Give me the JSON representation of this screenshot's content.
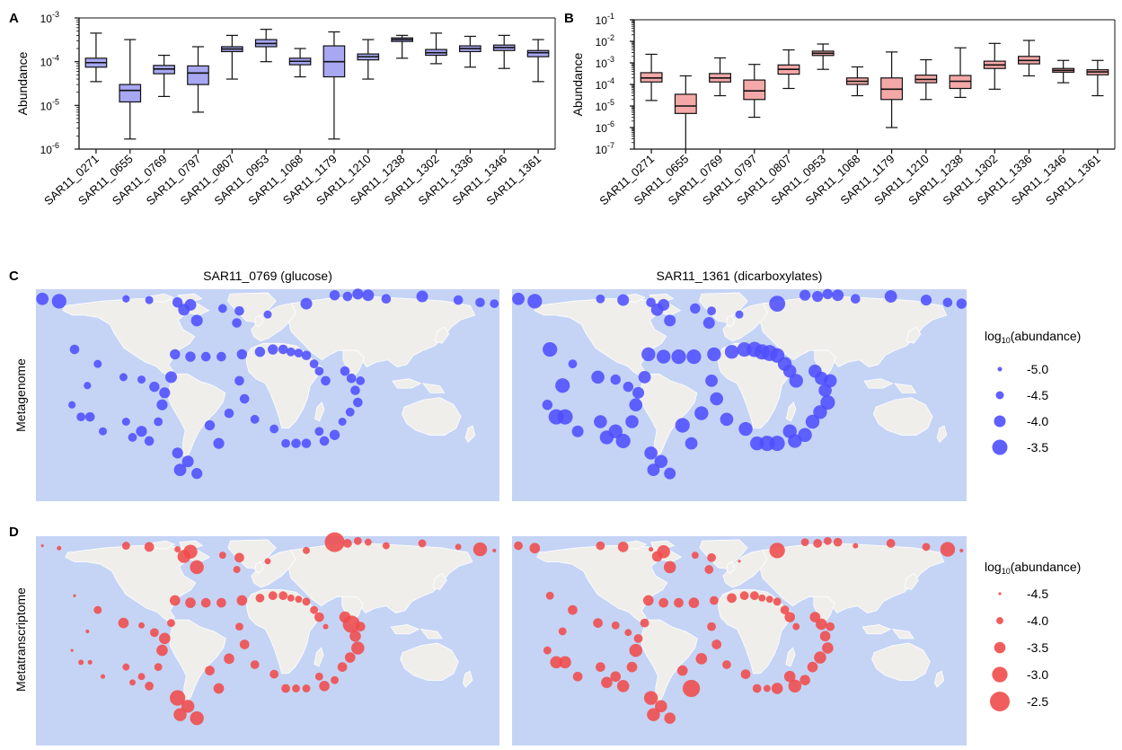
{
  "chart_data": [
    {
      "panel": "A",
      "type": "box",
      "ylabel": "Abundance",
      "scale": "log",
      "ylim": [
        1e-06,
        0.001
      ],
      "ytick_labels": [
        {
          "base": "10",
          "exp": "-6"
        },
        {
          "base": "10",
          "exp": "-5"
        },
        {
          "base": "10",
          "exp": "-4"
        },
        {
          "base": "10",
          "exp": "-3"
        }
      ],
      "color": "#a7a7f2",
      "categories": [
        "SAR11_0271",
        "SAR11_0655",
        "SAR11_0769",
        "SAR11_0797",
        "SAR11_0807",
        "SAR11_0953",
        "SAR11_1068",
        "SAR11_1179",
        "SAR11_1210",
        "SAR11_1238",
        "SAR11_1302",
        "SAR11_1336",
        "SAR11_1346",
        "SAR11_1361"
      ],
      "boxes": [
        {
          "min": 3.5e-05,
          "q1": 7.5e-05,
          "median": 9.5e-05,
          "q3": 0.00012,
          "max": 0.00045
        },
        {
          "min": 1.7e-06,
          "q1": 1.2e-05,
          "median": 2.2e-05,
          "q3": 3e-05,
          "max": 0.00032
        },
        {
          "min": 1.6e-05,
          "q1": 5.3e-05,
          "median": 6.8e-05,
          "q3": 8.2e-05,
          "max": 0.00014
        },
        {
          "min": 7e-06,
          "q1": 3e-05,
          "median": 5.5e-05,
          "q3": 8e-05,
          "max": 0.00022
        },
        {
          "min": 4e-05,
          "q1": 0.00017,
          "median": 0.000195,
          "q3": 0.00022,
          "max": 0.0004
        },
        {
          "min": 0.0001,
          "q1": 0.00022,
          "median": 0.00026,
          "q3": 0.00032,
          "max": 0.00055
        },
        {
          "min": 4.5e-05,
          "q1": 8.5e-05,
          "median": 0.000102,
          "q3": 0.00012,
          "max": 0.0002
        },
        {
          "min": 1.7e-06,
          "q1": 4.5e-05,
          "median": 0.0001,
          "q3": 0.00023,
          "max": 0.00048
        },
        {
          "min": 4e-05,
          "q1": 0.00011,
          "median": 0.00013,
          "q3": 0.00015,
          "max": 0.00032
        },
        {
          "min": 0.00012,
          "q1": 0.00029,
          "median": 0.00032,
          "q3": 0.00035,
          "max": 0.0004
        },
        {
          "min": 9e-05,
          "q1": 0.00014,
          "median": 0.00016,
          "q3": 0.00019,
          "max": 0.00045
        },
        {
          "min": 7.5e-05,
          "q1": 0.00017,
          "median": 0.0002,
          "q3": 0.00023,
          "max": 0.00038
        },
        {
          "min": 7e-05,
          "q1": 0.00018,
          "median": 0.00021,
          "q3": 0.00024,
          "max": 0.0004
        },
        {
          "min": 3.5e-05,
          "q1": 0.00013,
          "median": 0.00016,
          "q3": 0.00018,
          "max": 0.00032
        }
      ]
    },
    {
      "panel": "B",
      "type": "box",
      "ylabel": "Abundance",
      "scale": "log",
      "ylim": [
        1e-07,
        0.1
      ],
      "ytick_labels": [
        {
          "base": "10",
          "exp": "-7"
        },
        {
          "base": "10",
          "exp": "-6"
        },
        {
          "base": "10",
          "exp": "-5"
        },
        {
          "base": "10",
          "exp": "-4"
        },
        {
          "base": "10",
          "exp": "-3"
        },
        {
          "base": "10",
          "exp": "-2"
        },
        {
          "base": "10",
          "exp": "-1"
        }
      ],
      "color": "#f4a8a8",
      "categories": [
        "SAR11_0271",
        "SAR11_0655",
        "SAR11_0769",
        "SAR11_0797",
        "SAR11_0807",
        "SAR11_0953",
        "SAR11_1068",
        "SAR11_1179",
        "SAR11_1210",
        "SAR11_1238",
        "SAR11_1302",
        "SAR11_1336",
        "SAR11_1346",
        "SAR11_1361"
      ],
      "boxes": [
        {
          "min": 1.8e-05,
          "q1": 0.00013,
          "median": 0.0002,
          "q3": 0.00035,
          "max": 0.0025
        },
        {
          "min": 1e-07,
          "q1": 4.5e-06,
          "median": 1e-05,
          "q3": 3.5e-05,
          "max": 0.00025
        },
        {
          "min": 3e-05,
          "q1": 0.00013,
          "median": 0.0002,
          "q3": 0.00032,
          "max": 0.0017
        },
        {
          "min": 3e-06,
          "q1": 2e-05,
          "median": 5e-05,
          "q3": 0.00016,
          "max": 0.00085
        },
        {
          "min": 6.5e-05,
          "q1": 0.0003,
          "median": 0.0005,
          "q3": 0.0008,
          "max": 0.004
        },
        {
          "min": 0.0005,
          "q1": 0.0022,
          "median": 0.0028,
          "q3": 0.0035,
          "max": 0.0075
        },
        {
          "min": 3e-05,
          "q1": 0.0001,
          "median": 0.00014,
          "q3": 0.0002,
          "max": 0.00065
        },
        {
          "min": 1e-06,
          "q1": 2e-05,
          "median": 6e-05,
          "q3": 0.0002,
          "max": 0.0032
        },
        {
          "min": 2e-05,
          "q1": 0.00012,
          "median": 0.00017,
          "q3": 0.00027,
          "max": 0.0014
        },
        {
          "min": 2.5e-05,
          "q1": 6.5e-05,
          "median": 0.00014,
          "q3": 0.00026,
          "max": 0.005
        },
        {
          "min": 6e-05,
          "q1": 0.00055,
          "median": 0.0008,
          "q3": 0.0012,
          "max": 0.008
        },
        {
          "min": 0.00025,
          "q1": 0.0009,
          "median": 0.0013,
          "q3": 0.002,
          "max": 0.011
        },
        {
          "min": 0.00012,
          "q1": 0.00037,
          "median": 0.00045,
          "q3": 0.00055,
          "max": 0.0013
        },
        {
          "min": 3e-05,
          "q1": 0.00028,
          "median": 0.00038,
          "q3": 0.00048,
          "max": 0.0013
        }
      ]
    }
  ],
  "maps": {
    "land_color": "#efeeea",
    "ocean_color": "#c5d4f5",
    "metagenome": {
      "panel": "C",
      "row_label": "Metagenome",
      "color": "#4f4fff",
      "titles": [
        "SAR11_0769 (glucose)",
        "SAR11_1361 (dicarboxylates)"
      ],
      "legend_title": "log10(abundance)",
      "legend_title_main": "log",
      "legend_title_sub": "10",
      "legend_title_rest": "(abundance)",
      "legend": [
        {
          "label": "-5.0",
          "value": -5.0
        },
        {
          "label": "-4.5",
          "value": -4.5
        },
        {
          "label": "-4.0",
          "value": -4.0
        },
        {
          "label": "-3.5",
          "value": -3.5
        }
      ]
    },
    "metatranscriptome": {
      "panel": "D",
      "row_label": "Metatranscriptome",
      "color": "#f04b4b",
      "legend_title": "log10(abundance)",
      "legend_title_main": "log",
      "legend_title_sub": "10",
      "legend_title_rest": "(abundance)",
      "legend": [
        {
          "label": "-4.5",
          "value": -4.5
        },
        {
          "label": "-4.0",
          "value": -4.0
        },
        {
          "label": "-3.5",
          "value": -3.5
        },
        {
          "label": "-3.0",
          "value": -3.0
        },
        {
          "label": "-2.5",
          "value": -2.5
        }
      ]
    },
    "stations": [
      {
        "lon": -175,
        "lat": 80,
        "C1": -3.9,
        "C2": -3.9,
        "D1": -4.5,
        "D2": -3.8
      },
      {
        "lon": -162,
        "lat": 78,
        "C1": -3.6,
        "C2": -3.6,
        "D1": -4.3,
        "D2": -3.6
      },
      {
        "lon": -110,
        "lat": 80,
        "C1": -4.6,
        "C2": -4.4,
        "D1": -3.9,
        "D2": -3.8
      },
      {
        "lon": -92,
        "lat": 79,
        "C1": -4.5,
        "C2": -4.0,
        "D1": -3.7,
        "D2": -3.6
      },
      {
        "lon": -70,
        "lat": 77,
        "C1": -4.2,
        "C2": -4.3,
        "D1": -4.1,
        "D2": -4.3
      },
      {
        "lon": -60,
        "lat": 75,
        "C1": -4.0,
        "C2": -4.0,
        "D1": -3.2,
        "D2": -3.3
      },
      {
        "lon": -55,
        "lat": 62,
        "C1": -4.0,
        "C2": -4.0,
        "D1": -3.2,
        "D2": -3.4
      },
      {
        "lon": -65,
        "lat": 71,
        "C1": -4.0,
        "C2": -3.9,
        "D1": -3.3,
        "D2": -3.6
      },
      {
        "lon": -35,
        "lat": 72,
        "C1": -4.4,
        "C2": -4.2,
        "D1": -4.0,
        "D2": -4.0
      },
      {
        "lon": -22,
        "lat": 70,
        "C1": -4.3,
        "C2": -4.4,
        "D1": -3.7,
        "D2": -3.8
      },
      {
        "lon": -24,
        "lat": 60,
        "C1": -4.3,
        "C2": -4.0,
        "D1": -4.0,
        "D2": -3.8
      },
      {
        "lon": 0,
        "lat": 67,
        "C1": -4.5,
        "C2": -4.5,
        "D1": -4.1,
        "D2": -4.6
      },
      {
        "lon": 30,
        "lat": 76,
        "C1": -4.0,
        "C2": -3.4,
        "D1": -4.0,
        "D2": -3.0
      },
      {
        "lon": 52,
        "lat": 83,
        "C1": -4.2,
        "C2": -4.1,
        "D1": -2.5,
        "D2": -3.9
      },
      {
        "lon": 62,
        "lat": 82,
        "C1": -4.3,
        "C2": -4.1,
        "D1": -3.8,
        "D2": -3.8
      },
      {
        "lon": 70,
        "lat": 84,
        "C1": -4.1,
        "C2": -4.2,
        "D1": -3.9,
        "D2": -3.9
      },
      {
        "lon": 78,
        "lat": 83,
        "C1": -4.0,
        "C2": -4.0,
        "D1": -4.0,
        "D2": -3.8
      },
      {
        "lon": 92,
        "lat": 80,
        "C1": -4.3,
        "C2": -4.3,
        "D1": -4.0,
        "D2": -4.2
      },
      {
        "lon": 120,
        "lat": 82,
        "C1": -4.0,
        "C2": -3.9,
        "D1": -3.9,
        "D2": -3.8
      },
      {
        "lon": 148,
        "lat": 79,
        "C1": -4.3,
        "C2": -4.1,
        "D1": -4.1,
        "D2": -3.9
      },
      {
        "lon": 165,
        "lat": 77,
        "C1": -4.3,
        "C2": -4.3,
        "D1": -3.2,
        "D2": -3.1
      },
      {
        "lon": 176,
        "lat": 76,
        "C1": -4.4,
        "C2": -4.2,
        "D1": -4.4,
        "D2": -4.4
      },
      {
        "lon": -150,
        "lat": 38,
        "C1": -4.3,
        "C2": -3.6,
        "D1": -4.5,
        "D2": -3.9
      },
      {
        "lon": -132,
        "lat": 26,
        "C1": -4.5,
        "C2": -4.4,
        "D1": -3.9,
        "D2": -3.7
      },
      {
        "lon": -140,
        "lat": 8,
        "C1": -4.6,
        "C2": -3.6,
        "D1": -4.4,
        "D2": -3.9
      },
      {
        "lon": -152,
        "lat": -8,
        "C1": -4.6,
        "C2": -4.2,
        "D1": -4.5,
        "D2": -3.9
      },
      {
        "lon": -145,
        "lat": -18,
        "C1": -4.4,
        "C2": -3.5,
        "D1": -4.2,
        "D2": -3.4
      },
      {
        "lon": -138,
        "lat": -18,
        "C1": -4.3,
        "C2": -3.5,
        "D1": -4.3,
        "D2": -3.4
      },
      {
        "lon": -128,
        "lat": -30,
        "C1": -4.5,
        "C2": -4.0,
        "D1": -4.3,
        "D2": -3.7
      },
      {
        "lon": -110,
        "lat": -22,
        "C1": -4.5,
        "C2": -3.8,
        "D1": -4.0,
        "D2": -3.7
      },
      {
        "lon": -105,
        "lat": -35,
        "C1": -4.4,
        "C2": -3.7,
        "D1": -4.1,
        "D2": -3.5
      },
      {
        "lon": -98,
        "lat": -30,
        "C1": -4.1,
        "C2": -3.7,
        "D1": -4.0,
        "D2": -3.6
      },
      {
        "lon": -92,
        "lat": -38,
        "C1": -4.3,
        "C2": -3.6,
        "D1": -3.8,
        "D2": -3.4
      },
      {
        "lon": -85,
        "lat": -22,
        "C1": -4.4,
        "C2": -3.8,
        "D1": -3.9,
        "D2": -3.6
      },
      {
        "lon": -112,
        "lat": 15,
        "C1": -4.5,
        "C2": -3.8,
        "D1": -3.6,
        "D2": -3.7
      },
      {
        "lon": -98,
        "lat": 13,
        "C1": -4.5,
        "C2": -4.2,
        "D1": -4.1,
        "D2": -3.9
      },
      {
        "lon": -88,
        "lat": 7,
        "C1": -4.2,
        "C2": -4.2,
        "D1": -3.8,
        "D2": -4.0
      },
      {
        "lon": -80,
        "lat": 2,
        "C1": -4.1,
        "C2": -4.0,
        "D1": -3.5,
        "D2": -3.8
      },
      {
        "lon": -82,
        "lat": -8,
        "C1": -4.1,
        "C2": -3.8,
        "D1": -3.5,
        "D2": -3.3
      },
      {
        "lon": -75,
        "lat": 15,
        "C1": -4.0,
        "C2": -3.9,
        "D1": -3.9,
        "D2": -3.8
      },
      {
        "lon": -70,
        "lat": -48,
        "C1": -4.1,
        "C2": -3.8,
        "D1": -3.0,
        "D2": -3.2
      },
      {
        "lon": -62,
        "lat": -55,
        "C1": -4.0,
        "C2": -3.8,
        "D1": -3.3,
        "D2": -3.4
      },
      {
        "lon": -68,
        "lat": -62,
        "C1": -3.9,
        "C2": -3.9,
        "D1": -3.3,
        "D2": -3.3
      },
      {
        "lon": -55,
        "lat": -65,
        "C1": -4.1,
        "C2": -4.0,
        "D1": -3.2,
        "D2": -3.5
      },
      {
        "lon": -45,
        "lat": -25,
        "C1": -4.2,
        "C2": -3.6,
        "D1": -3.7,
        "D2": -3.6
      },
      {
        "lon": -38,
        "lat": -40,
        "C1": -4.1,
        "C2": -3.9,
        "D1": -3.6,
        "D2": -2.8
      },
      {
        "lon": -30,
        "lat": -15,
        "C1": -4.3,
        "C2": -3.7,
        "D1": -3.6,
        "D2": -3.5
      },
      {
        "lon": -72,
        "lat": 34,
        "C1": -4.2,
        "C2": -3.7,
        "D1": -3.6,
        "D2": -3.6
      },
      {
        "lon": -60,
        "lat": 32,
        "C1": -4.2,
        "C2": -3.7,
        "D1": -3.6,
        "D2": -3.7
      },
      {
        "lon": -48,
        "lat": 32,
        "C1": -4.3,
        "C2": -3.6,
        "D1": -3.7,
        "D2": -3.7
      },
      {
        "lon": -36,
        "lat": 32,
        "C1": -4.3,
        "C2": -3.6,
        "D1": -3.7,
        "D2": -3.6
      },
      {
        "lon": -20,
        "lat": 34,
        "C1": -4.2,
        "C2": -3.7,
        "D1": -3.6,
        "D2": -3.8
      },
      {
        "lon": -6,
        "lat": 36,
        "C1": -4.2,
        "C2": -3.7,
        "D1": -3.8,
        "D2": -3.7
      },
      {
        "lon": 4,
        "lat": 38,
        "C1": -4.2,
        "C2": -3.6,
        "D1": -3.8,
        "D2": -3.8
      },
      {
        "lon": 12,
        "lat": 38,
        "C1": -4.3,
        "C2": -3.5,
        "D1": -3.8,
        "D2": -3.8
      },
      {
        "lon": 18,
        "lat": 36,
        "C1": -4.4,
        "C2": -3.5,
        "D1": -4.0,
        "D2": -4.0
      },
      {
        "lon": 24,
        "lat": 35,
        "C1": -4.4,
        "C2": -3.4,
        "D1": -4.0,
        "D2": -4.0
      },
      {
        "lon": 30,
        "lat": 33,
        "C1": -4.3,
        "C2": -3.6,
        "D1": -3.9,
        "D2": -3.9
      },
      {
        "lon": 36,
        "lat": 26,
        "C1": -4.4,
        "C2": -3.7,
        "D1": -3.9,
        "D2": -3.8
      },
      {
        "lon": 40,
        "lat": 20,
        "C1": -4.4,
        "C2": -3.8,
        "D1": -3.7,
        "D2": -3.6
      },
      {
        "lon": 45,
        "lat": 12,
        "C1": -4.3,
        "C2": -3.7,
        "D1": -4.2,
        "D2": -4.0
      },
      {
        "lon": 60,
        "lat": 20,
        "C1": -4.3,
        "C2": -3.8,
        "D1": -3.5,
        "D2": -3.6
      },
      {
        "lon": 65,
        "lat": 14,
        "C1": -4.3,
        "C2": -3.8,
        "D1": -2.8,
        "D2": -3.5
      },
      {
        "lon": 68,
        "lat": 4,
        "C1": -4.3,
        "C2": -3.8,
        "D1": -3.5,
        "D2": -3.6
      },
      {
        "lon": 70,
        "lat": -6,
        "C1": -4.3,
        "C2": -3.6,
        "D1": -3.3,
        "D2": -3.5
      },
      {
        "lon": 64,
        "lat": -14,
        "C1": -4.4,
        "C2": -3.7,
        "D1": -3.6,
        "D2": -3.4
      },
      {
        "lon": 58,
        "lat": -22,
        "C1": -4.5,
        "C2": -3.7,
        "D1": -3.7,
        "D2": -3.6
      },
      {
        "lon": 52,
        "lat": -33,
        "C1": -4.2,
        "C2": -3.7,
        "D1": -3.9,
        "D2": -3.6
      },
      {
        "lon": 44,
        "lat": -38,
        "C1": -4.3,
        "C2": -3.7,
        "D1": -3.6,
        "D2": -3.3
      },
      {
        "lon": 40,
        "lat": -30,
        "C1": -4.4,
        "C2": -3.7,
        "D1": -3.9,
        "D2": -3.5
      },
      {
        "lon": 30,
        "lat": -40,
        "C1": -4.3,
        "C2": -3.5,
        "D1": -3.9,
        "D2": -3.5
      },
      {
        "lon": 22,
        "lat": -40,
        "C1": -4.3,
        "C2": -3.5,
        "D1": -3.9,
        "D2": -4.0
      },
      {
        "lon": 14,
        "lat": -40,
        "C1": -4.4,
        "C2": -3.7,
        "D1": -3.8,
        "D2": -3.8
      },
      {
        "lon": 5,
        "lat": -28,
        "C1": -4.4,
        "C2": -3.7,
        "D1": -3.8,
        "D2": -3.7
      },
      {
        "lon": -10,
        "lat": -20,
        "C1": -4.4,
        "C2": -3.8,
        "D1": -3.8,
        "D2": -3.8
      },
      {
        "lon": -18,
        "lat": -3,
        "C1": -4.3,
        "C2": -3.8,
        "D1": -3.7,
        "D2": -3.7
      },
      {
        "lon": -22,
        "lat": 12,
        "C1": -4.3,
        "C2": -3.9,
        "D1": -3.9,
        "D2": -3.8
      },
      {
        "lon": 72,
        "lat": 12,
        "C1": -4.4,
        "C2": -3.8,
        "D1": -3.7,
        "D2": -3.8
      }
    ]
  }
}
